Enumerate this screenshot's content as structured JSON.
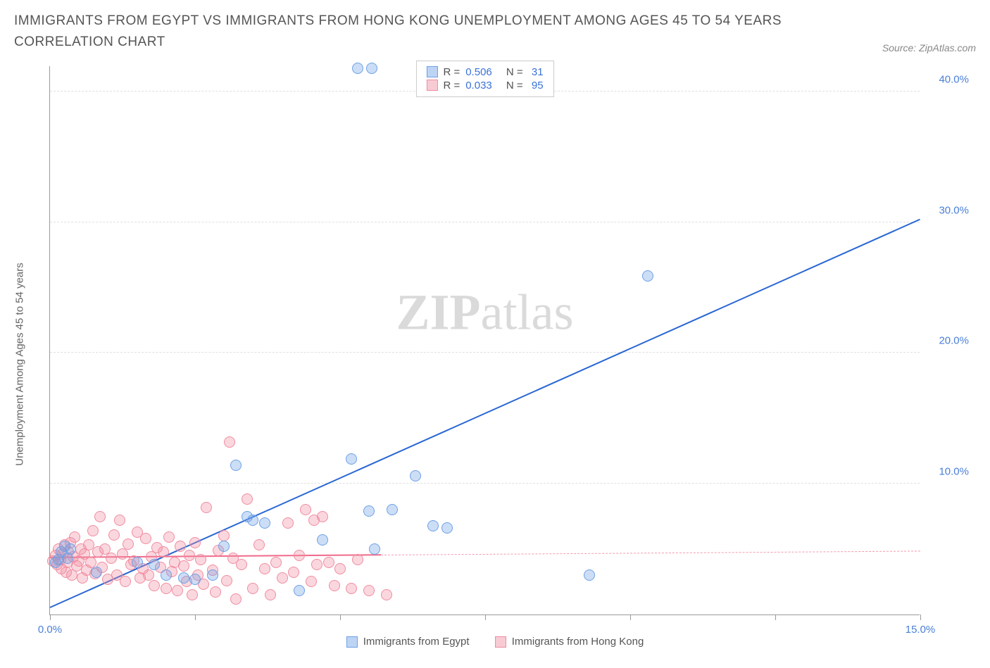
{
  "title": "IMMIGRANTS FROM EGYPT VS IMMIGRANTS FROM HONG KONG UNEMPLOYMENT AMONG AGES 45 TO 54 YEARS CORRELATION CHART",
  "source_label": "Source: ZipAtlas.com",
  "y_axis_label": "Unemployment Among Ages 45 to 54 years",
  "watermark": {
    "bold": "ZIP",
    "light": "atlas"
  },
  "chart": {
    "type": "scatter",
    "x_domain": [
      0,
      15
    ],
    "y_domain": [
      0,
      42
    ],
    "y_ticks": [
      10,
      20,
      30,
      40
    ],
    "y_tick_labels": [
      "10.0%",
      "20.0%",
      "30.0%",
      "40.0%"
    ],
    "x_ticks": [
      0,
      2.5,
      5,
      7.5,
      10,
      12.5,
      15
    ],
    "x_tick_labels_shown": {
      "0": "0.0%",
      "15": "15.0%"
    },
    "background_color": "#ffffff",
    "grid_color": "#e0e0e0",
    "axis_color": "#999999",
    "tick_label_color": "#4a7fd8",
    "point_radius": 8,
    "series": [
      {
        "id": "egypt",
        "label": "Immigrants from Egypt",
        "color_fill": "rgba(110,160,230,0.35)",
        "color_stroke": "#6ea0e6",
        "stats": {
          "R": "0.506",
          "N": "31"
        },
        "trend": {
          "x1": 0,
          "y1": 0.5,
          "x2": 15,
          "y2": 30.2,
          "color": "#2866d3",
          "width": 2,
          "style": "solid"
        },
        "points": [
          [
            0.1,
            4.0
          ],
          [
            0.15,
            4.2
          ],
          [
            0.2,
            4.8
          ],
          [
            0.25,
            5.2
          ],
          [
            0.3,
            4.3
          ],
          [
            0.35,
            5.0
          ],
          [
            0.8,
            3.2
          ],
          [
            1.5,
            4.0
          ],
          [
            1.8,
            3.8
          ],
          [
            2.0,
            3.0
          ],
          [
            2.3,
            2.8
          ],
          [
            2.5,
            2.7
          ],
          [
            2.8,
            3.0
          ],
          [
            3.0,
            5.2
          ],
          [
            3.2,
            11.4
          ],
          [
            3.4,
            7.5
          ],
          [
            3.5,
            7.2
          ],
          [
            3.7,
            7.0
          ],
          [
            4.3,
            1.8
          ],
          [
            4.7,
            5.7
          ],
          [
            5.2,
            11.9
          ],
          [
            5.5,
            7.9
          ],
          [
            5.6,
            5.0
          ],
          [
            5.9,
            8.0
          ],
          [
            6.3,
            10.6
          ],
          [
            6.6,
            6.8
          ],
          [
            6.85,
            6.6
          ],
          [
            9.3,
            3.0
          ],
          [
            10.3,
            25.9
          ],
          [
            5.3,
            41.8
          ],
          [
            5.55,
            41.8
          ]
        ]
      },
      {
        "id": "hongkong",
        "label": "Immigrants from Hong Kong",
        "color_fill": "rgba(240,140,160,0.35)",
        "color_stroke": "#f08ca0",
        "stats": {
          "R": "0.033",
          "N": "95"
        },
        "trend_solid": {
          "x1": 0,
          "y1": 4.3,
          "x2": 5.7,
          "y2": 4.5,
          "color": "#f06a8a",
          "width": 2,
          "style": "solid"
        },
        "trend_dashed": {
          "x1": 5.7,
          "y1": 4.5,
          "x2": 15,
          "y2": 4.8,
          "color": "#f49aae",
          "width": 1.5,
          "style": "dashed"
        },
        "points": [
          [
            0.05,
            4.1
          ],
          [
            0.1,
            4.5
          ],
          [
            0.12,
            3.8
          ],
          [
            0.15,
            5.0
          ],
          [
            0.18,
            4.2
          ],
          [
            0.2,
            3.5
          ],
          [
            0.22,
            4.6
          ],
          [
            0.25,
            5.3
          ],
          [
            0.28,
            3.2
          ],
          [
            0.3,
            4.0
          ],
          [
            0.32,
            4.8
          ],
          [
            0.35,
            5.5
          ],
          [
            0.38,
            3.0
          ],
          [
            0.4,
            4.4
          ],
          [
            0.43,
            5.9
          ],
          [
            0.46,
            3.7
          ],
          [
            0.5,
            4.1
          ],
          [
            0.53,
            5.0
          ],
          [
            0.56,
            2.8
          ],
          [
            0.6,
            4.6
          ],
          [
            0.63,
            3.4
          ],
          [
            0.67,
            5.3
          ],
          [
            0.7,
            4.0
          ],
          [
            0.74,
            6.4
          ],
          [
            0.78,
            3.1
          ],
          [
            0.82,
            4.8
          ],
          [
            0.86,
            7.5
          ],
          [
            0.9,
            3.6
          ],
          [
            0.95,
            5.0
          ],
          [
            1.0,
            2.7
          ],
          [
            1.05,
            4.3
          ],
          [
            1.1,
            6.1
          ],
          [
            1.15,
            3.0
          ],
          [
            1.2,
            7.2
          ],
          [
            1.25,
            4.6
          ],
          [
            1.3,
            2.5
          ],
          [
            1.35,
            5.4
          ],
          [
            1.4,
            3.8
          ],
          [
            1.45,
            4.1
          ],
          [
            1.5,
            6.3
          ],
          [
            1.55,
            2.8
          ],
          [
            1.6,
            3.5
          ],
          [
            1.65,
            5.8
          ],
          [
            1.7,
            3.0
          ],
          [
            1.75,
            4.4
          ],
          [
            1.8,
            2.2
          ],
          [
            1.85,
            5.1
          ],
          [
            1.9,
            3.6
          ],
          [
            1.95,
            4.8
          ],
          [
            2.0,
            2.0
          ],
          [
            2.05,
            5.9
          ],
          [
            2.1,
            3.3
          ],
          [
            2.15,
            4.0
          ],
          [
            2.2,
            1.8
          ],
          [
            2.25,
            5.2
          ],
          [
            2.3,
            3.7
          ],
          [
            2.35,
            2.5
          ],
          [
            2.4,
            4.5
          ],
          [
            2.45,
            1.5
          ],
          [
            2.5,
            5.5
          ],
          [
            2.55,
            3.0
          ],
          [
            2.6,
            4.2
          ],
          [
            2.65,
            2.3
          ],
          [
            2.7,
            8.2
          ],
          [
            2.8,
            3.4
          ],
          [
            2.85,
            1.7
          ],
          [
            2.9,
            4.9
          ],
          [
            3.0,
            6.0
          ],
          [
            3.05,
            2.6
          ],
          [
            3.1,
            13.2
          ],
          [
            3.15,
            4.3
          ],
          [
            3.2,
            1.2
          ],
          [
            3.3,
            3.8
          ],
          [
            3.4,
            8.8
          ],
          [
            3.5,
            2.0
          ],
          [
            3.6,
            5.3
          ],
          [
            3.7,
            3.5
          ],
          [
            3.8,
            1.5
          ],
          [
            3.9,
            4.0
          ],
          [
            4.0,
            2.8
          ],
          [
            4.1,
            7.0
          ],
          [
            4.2,
            3.2
          ],
          [
            4.3,
            4.5
          ],
          [
            4.4,
            8.0
          ],
          [
            4.5,
            2.5
          ],
          [
            4.55,
            7.2
          ],
          [
            4.6,
            3.8
          ],
          [
            4.7,
            7.5
          ],
          [
            4.8,
            4.0
          ],
          [
            4.9,
            2.2
          ],
          [
            5.0,
            3.5
          ],
          [
            5.2,
            2.0
          ],
          [
            5.3,
            4.2
          ],
          [
            5.5,
            1.8
          ],
          [
            5.8,
            1.5
          ]
        ]
      }
    ]
  },
  "legend_top": {
    "r_label": "R =",
    "n_label": "N ="
  },
  "legend_bottom": {
    "items": [
      {
        "series": "egypt",
        "swatch": "blue"
      },
      {
        "series": "hongkong",
        "swatch": "pink"
      }
    ]
  }
}
